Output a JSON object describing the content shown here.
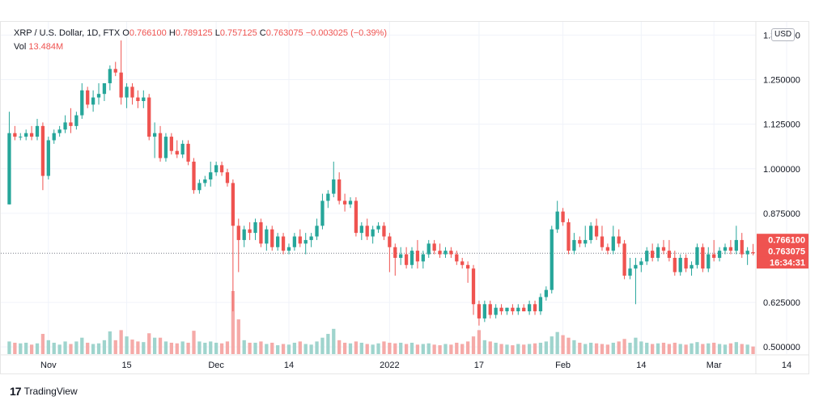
{
  "header": {
    "symbol": "XRP / U.S. Dollar, 1D, FTX",
    "open_label": "O",
    "open_value": "0.766100",
    "high_label": "H",
    "high_value": "0.789125",
    "low_label": "L",
    "low_value": "0.757125",
    "close_label": "C",
    "close_value": "0.763075",
    "change_value": "−0.003025 (−0.39%)",
    "vol_label": "Vol",
    "vol_value": "13.484M"
  },
  "currency_button": "USD",
  "price_badges": {
    "current_open": "0.766100",
    "last_close": "0.763075",
    "countdown": "16:34:31"
  },
  "footer": {
    "logo_mark": "17",
    "brand": "TradingView"
  },
  "colors": {
    "up": "#26a69a",
    "down": "#ef5350",
    "vol_up": "#9fd4cd",
    "vol_down": "#f5aaa8",
    "grid": "#f0f3fa",
    "text": "#131722"
  },
  "chart_data": {
    "type": "candlestick",
    "interval": "1D",
    "y_axis": {
      "ticks": [
        "1.375000",
        "1.250000",
        "1.125000",
        "1.000000",
        "0.875000",
        "0.625000",
        "0.500000"
      ],
      "tick_values": [
        1.375,
        1.25,
        1.125,
        1.0,
        0.875,
        0.625,
        0.5
      ],
      "ylim": [
        0.48,
        1.41
      ],
      "side": "right"
    },
    "x_axis": {
      "ticks": [
        {
          "label": "Nov",
          "index": 7
        },
        {
          "label": "15",
          "index": 21
        },
        {
          "label": "Dec",
          "index": 37
        },
        {
          "label": "14",
          "index": 50
        },
        {
          "label": "2022",
          "index": 68
        },
        {
          "label": "17",
          "index": 84
        },
        {
          "label": "Feb",
          "index": 99
        },
        {
          "label": "14",
          "index": 113
        },
        {
          "label": "Mar",
          "index": 126
        },
        {
          "label": "14",
          "index": 139
        }
      ]
    },
    "grid": true,
    "current_price_line": 0.763075,
    "ohlc": [
      [
        0.9,
        1.16,
        0.9,
        1.1
      ],
      [
        1.1,
        1.12,
        1.08,
        1.09
      ],
      [
        1.09,
        1.1,
        1.08,
        1.09
      ],
      [
        1.09,
        1.11,
        1.08,
        1.1
      ],
      [
        1.1,
        1.12,
        1.08,
        1.09
      ],
      [
        1.09,
        1.14,
        1.08,
        1.12
      ],
      [
        1.12,
        1.13,
        0.94,
        0.98
      ],
      [
        0.98,
        1.09,
        0.97,
        1.08
      ],
      [
        1.08,
        1.11,
        1.07,
        1.1
      ],
      [
        1.1,
        1.12,
        1.09,
        1.11
      ],
      [
        1.11,
        1.15,
        1.1,
        1.13
      ],
      [
        1.13,
        1.17,
        1.1,
        1.12
      ],
      [
        1.12,
        1.16,
        1.11,
        1.15
      ],
      [
        1.15,
        1.24,
        1.14,
        1.22
      ],
      [
        1.22,
        1.23,
        1.17,
        1.18
      ],
      [
        1.18,
        1.22,
        1.16,
        1.2
      ],
      [
        1.2,
        1.24,
        1.18,
        1.21
      ],
      [
        1.21,
        1.24,
        1.19,
        1.24
      ],
      [
        1.24,
        1.29,
        1.22,
        1.28
      ],
      [
        1.28,
        1.3,
        1.26,
        1.27
      ],
      [
        1.27,
        1.36,
        1.18,
        1.2
      ],
      [
        1.2,
        1.24,
        1.17,
        1.23
      ],
      [
        1.23,
        1.24,
        1.18,
        1.2
      ],
      [
        1.2,
        1.22,
        1.17,
        1.19
      ],
      [
        1.19,
        1.22,
        1.17,
        1.2
      ],
      [
        1.2,
        1.21,
        1.08,
        1.09
      ],
      [
        1.09,
        1.13,
        1.03,
        1.1
      ],
      [
        1.1,
        1.12,
        1.02,
        1.03
      ],
      [
        1.03,
        1.1,
        1.02,
        1.09
      ],
      [
        1.09,
        1.1,
        1.04,
        1.05
      ],
      [
        1.05,
        1.08,
        1.03,
        1.04
      ],
      [
        1.04,
        1.08,
        1.03,
        1.07
      ],
      [
        1.07,
        1.08,
        1.01,
        1.02
      ],
      [
        1.02,
        1.03,
        0.93,
        0.94
      ],
      [
        0.94,
        0.97,
        0.93,
        0.96
      ],
      [
        0.96,
        0.98,
        0.95,
        0.97
      ],
      [
        0.97,
        1.02,
        0.95,
        0.99
      ],
      [
        0.99,
        1.02,
        0.98,
        1.01
      ],
      [
        1.01,
        1.02,
        0.98,
        0.99
      ],
      [
        0.99,
        1.0,
        0.95,
        0.96
      ],
      [
        0.96,
        0.97,
        0.6,
        0.84
      ],
      [
        0.84,
        0.86,
        0.71,
        0.8
      ],
      [
        0.8,
        0.84,
        0.78,
        0.83
      ],
      [
        0.83,
        0.85,
        0.8,
        0.82
      ],
      [
        0.82,
        0.86,
        0.8,
        0.85
      ],
      [
        0.85,
        0.86,
        0.78,
        0.79
      ],
      [
        0.79,
        0.84,
        0.77,
        0.83
      ],
      [
        0.83,
        0.84,
        0.77,
        0.78
      ],
      [
        0.78,
        0.82,
        0.77,
        0.81
      ],
      [
        0.81,
        0.82,
        0.76,
        0.77
      ],
      [
        0.77,
        0.79,
        0.76,
        0.78
      ],
      [
        0.78,
        0.82,
        0.77,
        0.81
      ],
      [
        0.81,
        0.83,
        0.78,
        0.79
      ],
      [
        0.79,
        0.82,
        0.76,
        0.8
      ],
      [
        0.8,
        0.82,
        0.78,
        0.81
      ],
      [
        0.81,
        0.86,
        0.8,
        0.84
      ],
      [
        0.84,
        0.93,
        0.83,
        0.91
      ],
      [
        0.91,
        0.94,
        0.89,
        0.93
      ],
      [
        0.93,
        1.02,
        0.92,
        0.97
      ],
      [
        0.97,
        0.99,
        0.9,
        0.91
      ],
      [
        0.91,
        0.93,
        0.88,
        0.9
      ],
      [
        0.9,
        0.92,
        0.89,
        0.91
      ],
      [
        0.91,
        0.92,
        0.81,
        0.82
      ],
      [
        0.82,
        0.85,
        0.8,
        0.84
      ],
      [
        0.84,
        0.86,
        0.8,
        0.81
      ],
      [
        0.81,
        0.84,
        0.79,
        0.83
      ],
      [
        0.83,
        0.85,
        0.82,
        0.84
      ],
      [
        0.84,
        0.85,
        0.8,
        0.81
      ],
      [
        0.81,
        0.82,
        0.71,
        0.78
      ],
      [
        0.78,
        0.79,
        0.7,
        0.75
      ],
      [
        0.75,
        0.78,
        0.73,
        0.76
      ],
      [
        0.76,
        0.78,
        0.72,
        0.73
      ],
      [
        0.73,
        0.78,
        0.72,
        0.77
      ],
      [
        0.77,
        0.8,
        0.72,
        0.74
      ],
      [
        0.74,
        0.77,
        0.72,
        0.76
      ],
      [
        0.76,
        0.8,
        0.75,
        0.79
      ],
      [
        0.79,
        0.8,
        0.76,
        0.77
      ],
      [
        0.77,
        0.79,
        0.75,
        0.76
      ],
      [
        0.76,
        0.78,
        0.75,
        0.77
      ],
      [
        0.77,
        0.78,
        0.75,
        0.76
      ],
      [
        0.76,
        0.77,
        0.73,
        0.74
      ],
      [
        0.74,
        0.75,
        0.72,
        0.73
      ],
      [
        0.73,
        0.74,
        0.68,
        0.72
      ],
      [
        0.72,
        0.73,
        0.59,
        0.62
      ],
      [
        0.62,
        0.63,
        0.56,
        0.58
      ],
      [
        0.58,
        0.63,
        0.57,
        0.62
      ],
      [
        0.62,
        0.63,
        0.58,
        0.59
      ],
      [
        0.59,
        0.62,
        0.58,
        0.61
      ],
      [
        0.61,
        0.62,
        0.59,
        0.6
      ],
      [
        0.6,
        0.61,
        0.59,
        0.61
      ],
      [
        0.61,
        0.62,
        0.59,
        0.6
      ],
      [
        0.6,
        0.62,
        0.59,
        0.61
      ],
      [
        0.61,
        0.62,
        0.6,
        0.6
      ],
      [
        0.6,
        0.63,
        0.59,
        0.62
      ],
      [
        0.62,
        0.63,
        0.59,
        0.6
      ],
      [
        0.6,
        0.65,
        0.59,
        0.64
      ],
      [
        0.64,
        0.67,
        0.63,
        0.66
      ],
      [
        0.66,
        0.84,
        0.65,
        0.83
      ],
      [
        0.83,
        0.91,
        0.82,
        0.88
      ],
      [
        0.88,
        0.89,
        0.84,
        0.85
      ],
      [
        0.85,
        0.86,
        0.76,
        0.77
      ],
      [
        0.77,
        0.82,
        0.76,
        0.8
      ],
      [
        0.8,
        0.81,
        0.78,
        0.79
      ],
      [
        0.79,
        0.84,
        0.78,
        0.8
      ],
      [
        0.8,
        0.85,
        0.79,
        0.84
      ],
      [
        0.84,
        0.86,
        0.8,
        0.81
      ],
      [
        0.81,
        0.84,
        0.77,
        0.78
      ],
      [
        0.78,
        0.79,
        0.76,
        0.77
      ],
      [
        0.77,
        0.84,
        0.76,
        0.81
      ],
      [
        0.81,
        0.83,
        0.78,
        0.79
      ],
      [
        0.79,
        0.8,
        0.69,
        0.7
      ],
      [
        0.7,
        0.75,
        0.69,
        0.72
      ],
      [
        0.72,
        0.75,
        0.62,
        0.73
      ],
      [
        0.73,
        0.75,
        0.71,
        0.74
      ],
      [
        0.74,
        0.78,
        0.73,
        0.77
      ],
      [
        0.77,
        0.79,
        0.74,
        0.75
      ],
      [
        0.75,
        0.79,
        0.74,
        0.78
      ],
      [
        0.78,
        0.8,
        0.76,
        0.77
      ],
      [
        0.77,
        0.8,
        0.74,
        0.75
      ],
      [
        0.75,
        0.77,
        0.7,
        0.71
      ],
      [
        0.71,
        0.76,
        0.7,
        0.75
      ],
      [
        0.75,
        0.76,
        0.71,
        0.72
      ],
      [
        0.72,
        0.74,
        0.7,
        0.73
      ],
      [
        0.73,
        0.79,
        0.72,
        0.78
      ],
      [
        0.78,
        0.79,
        0.71,
        0.72
      ],
      [
        0.72,
        0.78,
        0.71,
        0.76
      ],
      [
        0.76,
        0.8,
        0.74,
        0.75
      ],
      [
        0.75,
        0.78,
        0.74,
        0.77
      ],
      [
        0.77,
        0.79,
        0.76,
        0.78
      ],
      [
        0.78,
        0.8,
        0.76,
        0.77
      ],
      [
        0.77,
        0.84,
        0.76,
        0.8
      ],
      [
        0.8,
        0.82,
        0.75,
        0.76
      ],
      [
        0.76,
        0.78,
        0.73,
        0.77
      ],
      [
        0.766,
        0.789,
        0.757,
        0.763
      ]
    ],
    "volume": [
      0.2,
      0.18,
      0.17,
      0.18,
      0.15,
      0.17,
      0.32,
      0.22,
      0.18,
      0.15,
      0.2,
      0.16,
      0.2,
      0.26,
      0.18,
      0.16,
      0.17,
      0.22,
      0.36,
      0.22,
      0.38,
      0.28,
      0.23,
      0.2,
      0.19,
      0.33,
      0.26,
      0.26,
      0.2,
      0.18,
      0.17,
      0.2,
      0.18,
      0.37,
      0.2,
      0.18,
      0.2,
      0.18,
      0.17,
      0.2,
      1.0,
      0.55,
      0.22,
      0.18,
      0.18,
      0.2,
      0.16,
      0.18,
      0.14,
      0.16,
      0.15,
      0.18,
      0.2,
      0.16,
      0.15,
      0.2,
      0.26,
      0.32,
      0.4,
      0.22,
      0.18,
      0.17,
      0.2,
      0.18,
      0.16,
      0.15,
      0.17,
      0.2,
      0.18,
      0.17,
      0.18,
      0.16,
      0.18,
      0.15,
      0.16,
      0.17,
      0.15,
      0.14,
      0.16,
      0.15,
      0.18,
      0.16,
      0.2,
      0.28,
      0.38,
      0.22,
      0.2,
      0.18,
      0.16,
      0.15,
      0.14,
      0.16,
      0.15,
      0.16,
      0.17,
      0.18,
      0.2,
      0.28,
      0.35,
      0.3,
      0.26,
      0.22,
      0.18,
      0.16,
      0.18,
      0.17,
      0.16,
      0.15,
      0.18,
      0.2,
      0.24,
      0.18,
      0.26,
      0.2,
      0.18,
      0.16,
      0.17,
      0.18,
      0.16,
      0.18,
      0.16,
      0.15,
      0.17,
      0.19,
      0.16,
      0.17,
      0.18,
      0.16,
      0.15,
      0.17,
      0.19,
      0.16,
      0.15,
      0.12
    ]
  }
}
